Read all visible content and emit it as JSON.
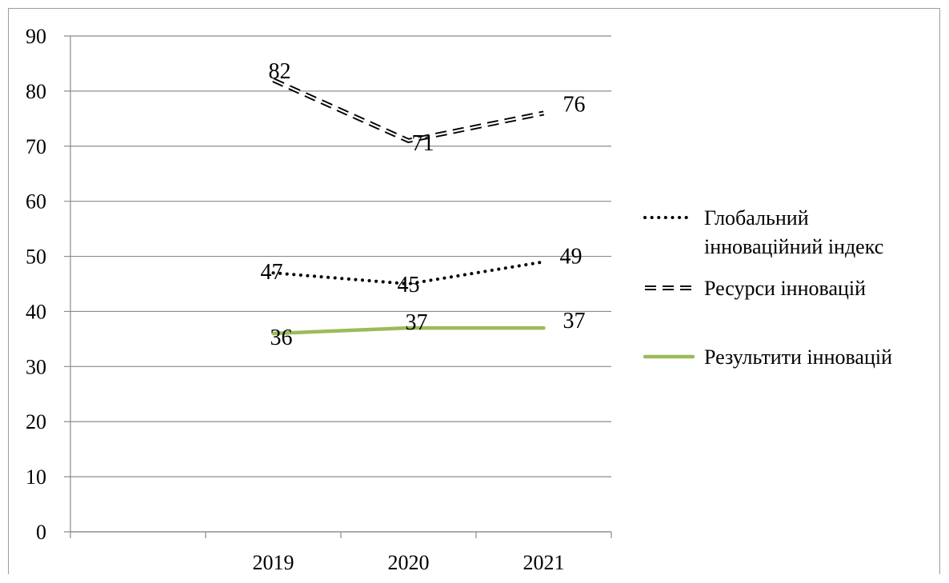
{
  "chart_data": {
    "type": "line",
    "categories": [
      "",
      "2019",
      "2020",
      "2021"
    ],
    "ylim": [
      0,
      90
    ],
    "y_ticks": [
      "0",
      "10",
      "20",
      "30",
      "40",
      "50",
      "60",
      "70",
      "80",
      "90"
    ],
    "grid": true,
    "legend_position": "right",
    "series": [
      {
        "name": "Глобальний інноваційний індекс",
        "name_lines": [
          "Глобальний",
          "інноваційний індекс"
        ],
        "values": [
          null,
          47,
          45,
          49
        ],
        "labels": [
          "",
          "47",
          "45",
          "49"
        ],
        "color": "#000000",
        "style": "dotted"
      },
      {
        "name": "Ресурси інновацій",
        "name_lines": [
          "Ресурси інновацій"
        ],
        "values": [
          null,
          82,
          71,
          76
        ],
        "labels": [
          "",
          "82",
          "71",
          "76"
        ],
        "color": "#000000",
        "style": "double-dashed"
      },
      {
        "name": "Результити інновацій",
        "name_lines": [
          "Результити інновацій"
        ],
        "values": [
          null,
          36,
          37,
          37
        ],
        "labels": [
          "",
          "36",
          "37",
          "37"
        ],
        "color": "#9bbb59",
        "style": "solid"
      }
    ]
  }
}
